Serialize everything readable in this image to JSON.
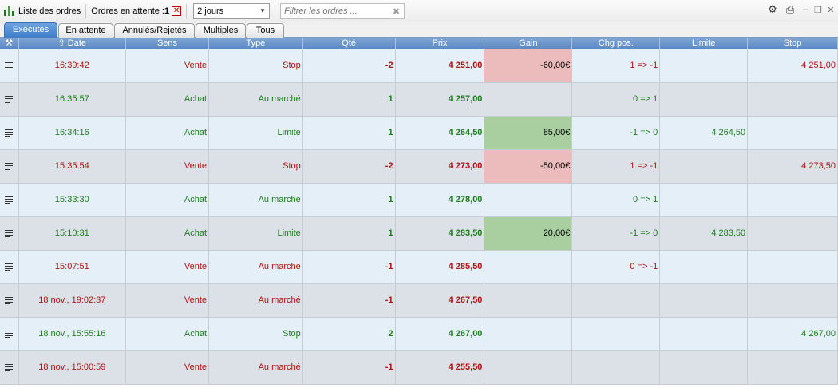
{
  "toolbar": {
    "title": "Liste des ordres",
    "pending_label": "Ordres en attente :",
    "pending_count": "1",
    "period_value": "2 jours",
    "filter_placeholder": "Filtrer les ordres ..."
  },
  "tabs": [
    {
      "label": "Exécutés",
      "active": true
    },
    {
      "label": "En attente",
      "active": false
    },
    {
      "label": "Annulés/Rejetés",
      "active": false
    },
    {
      "label": "Multiples",
      "active": false
    },
    {
      "label": "Tous",
      "active": false
    }
  ],
  "columns": {
    "date": "Date",
    "sens": "Sens",
    "type": "Type",
    "qte": "Qté",
    "prix": "Prix",
    "gain": "Gain",
    "chg": "Chg pos.",
    "limite": "Limite",
    "stop": "Stop"
  },
  "colors": {
    "sell": "#b01010",
    "buy": "#1d7d1d",
    "gain_negative_bg": "#ecbcbc",
    "gain_positive_bg": "#a9cfa1",
    "header": "#6a94ca"
  },
  "rows": [
    {
      "side": "sell",
      "date": "16:39:42",
      "sens": "Vente",
      "type": "Stop",
      "qte": "-2",
      "prix": "4 251,00",
      "gain": "-60,00€",
      "chg": "1 => -1",
      "limite": "",
      "stop": "4 251,00"
    },
    {
      "side": "buy",
      "date": "16:35:57",
      "sens": "Achat",
      "type": "Au marché",
      "qte": "1",
      "prix": "4 257,00",
      "gain": "",
      "chg": "0 => 1",
      "limite": "",
      "stop": ""
    },
    {
      "side": "buy",
      "date": "16:34:16",
      "sens": "Achat",
      "type": "Limite",
      "qte": "1",
      "prix": "4 264,50",
      "gain": "85,00€",
      "chg": "-1 => 0",
      "limite": "4 264,50",
      "stop": ""
    },
    {
      "side": "sell",
      "date": "15:35:54",
      "sens": "Vente",
      "type": "Stop",
      "qte": "-2",
      "prix": "4 273,00",
      "gain": "-50,00€",
      "chg": "1 => -1",
      "limite": "",
      "stop": "4 273,50"
    },
    {
      "side": "buy",
      "date": "15:33:30",
      "sens": "Achat",
      "type": "Au marché",
      "qte": "1",
      "prix": "4 278,00",
      "gain": "",
      "chg": "0 => 1",
      "limite": "",
      "stop": ""
    },
    {
      "side": "buy",
      "date": "15:10:31",
      "sens": "Achat",
      "type": "Limite",
      "qte": "1",
      "prix": "4 283,50",
      "gain": "20,00€",
      "chg": "-1 => 0",
      "limite": "4 283,50",
      "stop": ""
    },
    {
      "side": "sell",
      "date": "15:07:51",
      "sens": "Vente",
      "type": "Au marché",
      "qte": "-1",
      "prix": "4 285,50",
      "gain": "",
      "chg": "0 => -1",
      "limite": "",
      "stop": ""
    },
    {
      "side": "sell",
      "date": "18 nov., 19:02:37",
      "sens": "Vente",
      "type": "Au marché",
      "qte": "-1",
      "prix": "4 267,50",
      "gain": "",
      "chg": "",
      "limite": "",
      "stop": ""
    },
    {
      "side": "buy",
      "date": "18 nov., 15:55:16",
      "sens": "Achat",
      "type": "Stop",
      "qte": "2",
      "prix": "4 267,00",
      "gain": "",
      "chg": "",
      "limite": "",
      "stop": "4 267,00"
    },
    {
      "side": "sell",
      "date": "18 nov., 15:00:59",
      "sens": "Vente",
      "type": "Au marché",
      "qte": "-1",
      "prix": "4 255,50",
      "gain": "",
      "chg": "",
      "limite": "",
      "stop": ""
    }
  ]
}
